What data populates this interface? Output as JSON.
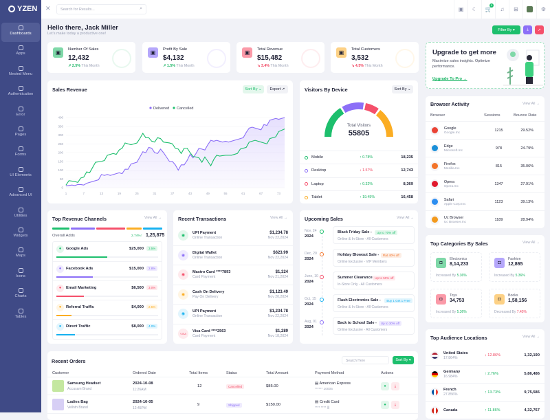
{
  "app": {
    "logo": "YZEN"
  },
  "sidebar": {
    "items": [
      {
        "label": "Dashboards",
        "icon": "home-icon"
      },
      {
        "label": "Apps",
        "icon": "grid-icon"
      },
      {
        "label": "Nested Menu",
        "icon": "layers-icon"
      },
      {
        "label": "Authentication",
        "icon": "fingerprint-icon"
      },
      {
        "label": "Error",
        "icon": "warning-icon"
      },
      {
        "label": "Pages",
        "icon": "page-icon"
      },
      {
        "label": "Forms",
        "icon": "form-icon"
      },
      {
        "label": "UI Elements",
        "icon": "box-icon"
      },
      {
        "label": "Advanced UI",
        "icon": "pen-icon"
      },
      {
        "label": "Utilities",
        "icon": "database-icon"
      },
      {
        "label": "Widgets",
        "icon": "widget-icon"
      },
      {
        "label": "Maps",
        "icon": "map-icon"
      },
      {
        "label": "Icons",
        "icon": "icons-icon"
      },
      {
        "label": "Charts",
        "icon": "chart-icon"
      },
      {
        "label": "Tables",
        "icon": "table-icon"
      }
    ]
  },
  "header": {
    "search_placeholder": "Search for Results...",
    "cart_count": "5"
  },
  "greeting": {
    "title": "Hello there, Jack Miller",
    "subtitle": "Let's make today a productive one!"
  },
  "actions": {
    "filter": "Filter By"
  },
  "stats": [
    {
      "label": "Number Of Sales",
      "value": "12,432",
      "change": "2.5%",
      "period": "This Month",
      "trend": "up",
      "color": "#7fd8a8"
    },
    {
      "label": "Profit By Sale",
      "value": "$4,132",
      "change": "1.5%",
      "period": "This Month",
      "trend": "up",
      "color": "#b5a7fb"
    },
    {
      "label": "Total Revenue",
      "value": "$15,482",
      "change": "3.4%",
      "period": "This Month",
      "trend": "down",
      "color": "#fb9aa8"
    },
    {
      "label": "Total Customers",
      "value": "3,532",
      "change": "4.5%",
      "period": "This Month",
      "trend": "down",
      "color": "#fdd185"
    }
  ],
  "sales_revenue": {
    "title": "Sales Revenue",
    "sort": "Sort By",
    "export": "Export"
  },
  "chart_data": {
    "type": "area",
    "legend_position": "top-center",
    "grid": true,
    "ylim": [
      0,
      400
    ],
    "y_ticks": [
      "0",
      "50",
      "100",
      "150",
      "200",
      "250",
      "300",
      "350",
      "400"
    ],
    "x_ticks": [
      "1",
      "7",
      "13",
      "19",
      "25",
      "31",
      "37",
      "43",
      "49",
      "55",
      "61",
      "67",
      "73"
    ],
    "series": [
      {
        "name": "Delivered",
        "color": "#8c6ff7",
        "points": [
          [
            1,
            10
          ],
          [
            3,
            15
          ],
          [
            4,
            12
          ],
          [
            5,
            18
          ],
          [
            6,
            18
          ],
          [
            7,
            15
          ],
          [
            8,
            25
          ],
          [
            10,
            35
          ],
          [
            12,
            45
          ],
          [
            13,
            75
          ],
          [
            14,
            70
          ],
          [
            15,
            75
          ],
          [
            16,
            70
          ],
          [
            18,
            80
          ],
          [
            19,
            85
          ],
          [
            20,
            80
          ],
          [
            21,
            105
          ],
          [
            22,
            105
          ],
          [
            23,
            135
          ],
          [
            25,
            145
          ],
          [
            26,
            175
          ],
          [
            27,
            205
          ],
          [
            28,
            200
          ],
          [
            29,
            230
          ],
          [
            30,
            225
          ],
          [
            31,
            200
          ],
          [
            32,
            195
          ],
          [
            33,
            220
          ],
          [
            34,
            200
          ],
          [
            35,
            175
          ],
          [
            36,
            150
          ],
          [
            37,
            150
          ],
          [
            38,
            130
          ],
          [
            39,
            100
          ],
          [
            40,
            130
          ],
          [
            41,
            130
          ],
          [
            42,
            155
          ],
          [
            43,
            190
          ],
          [
            44,
            170
          ],
          [
            45,
            195
          ],
          [
            46,
            225
          ],
          [
            47,
            220
          ],
          [
            48,
            215
          ],
          [
            49,
            245
          ],
          [
            50,
            270
          ],
          [
            51,
            265
          ],
          [
            52,
            270
          ],
          [
            53,
            265
          ],
          [
            54,
            260
          ],
          [
            55,
            265
          ],
          [
            56,
            260
          ],
          [
            58,
            270
          ],
          [
            60,
            280
          ],
          [
            61,
            285
          ],
          [
            62,
            315
          ],
          [
            63,
            340
          ],
          [
            64,
            345
          ],
          [
            66,
            335
          ],
          [
            67,
            330
          ],
          [
            68,
            360
          ],
          [
            69,
            355
          ],
          [
            70,
            385
          ],
          [
            72,
            395
          ],
          [
            73,
            390
          ],
          [
            75,
            400
          ]
        ]
      },
      {
        "name": "Cancelled",
        "color": "#1dbf6d",
        "points": [
          [
            1,
            15
          ],
          [
            2,
            40
          ],
          [
            4,
            35
          ],
          [
            5,
            30
          ],
          [
            6,
            55
          ],
          [
            7,
            60
          ],
          [
            8,
            90
          ],
          [
            9,
            85
          ],
          [
            10,
            115
          ],
          [
            11,
            145
          ],
          [
            13,
            150
          ],
          [
            14,
            155
          ],
          [
            15,
            185
          ],
          [
            17,
            195
          ],
          [
            18,
            190
          ],
          [
            19,
            215
          ],
          [
            20,
            225
          ],
          [
            21,
            255
          ],
          [
            23,
            245
          ],
          [
            25,
            255
          ],
          [
            26,
            280
          ],
          [
            27,
            310
          ],
          [
            28,
            285
          ],
          [
            29,
            285
          ],
          [
            30,
            265
          ],
          [
            31,
            260
          ],
          [
            32,
            285
          ],
          [
            33,
            280
          ],
          [
            34,
            260
          ],
          [
            36,
            255
          ],
          [
            37,
            250
          ],
          [
            38,
            225
          ],
          [
            39,
            220
          ],
          [
            40,
            195
          ],
          [
            41,
            225
          ],
          [
            42,
            225
          ],
          [
            43,
            200
          ],
          [
            44,
            178
          ],
          [
            45,
            175
          ],
          [
            46,
            170
          ],
          [
            47,
            145
          ],
          [
            48,
            175
          ],
          [
            49,
            150
          ],
          [
            50,
            125
          ],
          [
            51,
            160
          ],
          [
            52,
            185
          ],
          [
            53,
            180
          ],
          [
            55,
            185
          ],
          [
            57,
            185
          ],
          [
            58,
            190
          ],
          [
            59,
            195
          ],
          [
            60,
            220
          ],
          [
            62,
            230
          ],
          [
            63,
            260
          ],
          [
            65,
            270
          ],
          [
            67,
            260
          ],
          [
            68,
            255
          ],
          [
            69,
            250
          ],
          [
            70,
            280
          ],
          [
            72,
            290
          ],
          [
            73,
            320
          ],
          [
            75,
            335
          ]
        ]
      }
    ]
  },
  "visitors": {
    "title": "Visitors By Device",
    "sort": "Sort By",
    "center_label": "Total Visitors",
    "total": "55805",
    "rows": [
      {
        "name": "Mobile",
        "change": "0.78%",
        "trend": "up",
        "value": "18,235",
        "count": 18235,
        "color": "#1dbf6d"
      },
      {
        "name": "Desktop",
        "change": "1.57%",
        "trend": "down",
        "value": "12,743",
        "count": 12743,
        "color": "#8c6ff7"
      },
      {
        "name": "Laptop",
        "change": "0.32%",
        "trend": "up",
        "value": "8,369",
        "count": 8369,
        "color": "#f5506b"
      },
      {
        "name": "Tablet",
        "change": "19.45%",
        "trend": "up",
        "value": "16,458",
        "count": 16458,
        "color": "#fbad23"
      }
    ]
  },
  "upgrade": {
    "title": "Upgrade to get more",
    "text": "Maximize sales insights. Optimize performance.",
    "link": "Upgrade To Pro"
  },
  "browser": {
    "title": "Browser Activity",
    "view_all": "View All",
    "headers": [
      "Browser",
      "Sessions",
      "Bounce Rate"
    ],
    "rows": [
      {
        "name": "Google",
        "sub": "Google.Inc",
        "sessions": "1215",
        "bounce": "29.52%",
        "color": "#ea4335"
      },
      {
        "name": "Edge",
        "sub": "Microsoft.Inc",
        "sessions": "978",
        "bounce": "24.79%",
        "color": "#1a8fd8"
      },
      {
        "name": "Firefox",
        "sub": "Mozilla.Inc",
        "sessions": "815",
        "bounce": "35.06%",
        "color": "#f3742a"
      },
      {
        "name": "Opera",
        "sub": "Opera.Inc",
        "sessions": "1347",
        "bounce": "27.91%",
        "color": "#e0182d"
      },
      {
        "name": "Safari",
        "sub": "Apple Corp.Inc",
        "sessions": "1123",
        "bounce": "39.13%",
        "color": "#2d8ef0"
      },
      {
        "name": "Uc Browser",
        "sub": "Uc Browser.Inc",
        "sessions": "1189",
        "bounce": "28.94%",
        "color": "#f39a1d"
      }
    ]
  },
  "channels": {
    "title": "Top Revenue Channels",
    "view_all": "View All",
    "overall_label": "Overall Adds",
    "overall_change": "2.74%",
    "overall_value": "1,25,875",
    "rows": [
      {
        "name": "Google Ads",
        "value": "$25,000",
        "pct": "3.5%",
        "color": "#1dbf6d",
        "bg": "#e3f7ec",
        "fill": 0.5
      },
      {
        "name": "Facebook Ads",
        "value": "$15,000",
        "pct": "2.8%",
        "color": "#8c6ff7",
        "bg": "#efebfe",
        "fill": 0.36
      },
      {
        "name": "Email Marketing",
        "value": "$6,500",
        "pct": "3.0%",
        "color": "#f5506b",
        "bg": "#feeaed",
        "fill": 0.27
      },
      {
        "name": "Referral Traffic",
        "value": "$4,000",
        "pct": "2.5%",
        "color": "#fbad23",
        "bg": "#fff5e3",
        "fill": 0.15
      },
      {
        "name": "Direct Traffic",
        "value": "$8,000",
        "pct": "4.0%",
        "color": "#16b1f0",
        "bg": "#e2f5fd",
        "fill": 0.18
      }
    ]
  },
  "transactions": {
    "title": "Recent Transactions",
    "view_all": "View All",
    "rows": [
      {
        "name": "UPI Payment",
        "sub": "Online Transaction",
        "amount": "$1,234.78",
        "date": "Nov 22,2024",
        "color": "#1dbf6d",
        "bg": "#e3f7ec"
      },
      {
        "name": "Digital Wallet",
        "sub": "Online Transaction",
        "amount": "$623.99",
        "date": "Nov 22,2024",
        "color": "#8c6ff7",
        "bg": "#efebfe"
      },
      {
        "name": "Mastro Card ****7893",
        "sub": "Card Payment",
        "amount": "$1,324",
        "date": "Nov 21,2024",
        "color": "#f5506b",
        "bg": "#feeaed"
      },
      {
        "name": "Cash On Delivery",
        "sub": "Pay On Delivery",
        "amount": "$1,123.49",
        "date": "Nov 20,2024",
        "color": "#fbad23",
        "bg": "#fff5e3"
      },
      {
        "name": "UPI Payment",
        "sub": "Online Transaction",
        "amount": "$1,234.78",
        "date": "Nov 22,2024",
        "color": "#16b1f0",
        "bg": "#e2f5fd"
      },
      {
        "name": "Visa Card ****2563",
        "sub": "Card Payment",
        "amount": "$1,289",
        "date": "Nov 18,2024",
        "color": "#f5506b",
        "bg": "#feeaed",
        "icon_text": "VISA"
      }
    ]
  },
  "upcoming": {
    "title": "Upcoming Sales",
    "view_all": "View All",
    "rows": [
      {
        "day": "Nov, 24",
        "year": "2024",
        "name": "Black Friday Sale -",
        "tag": "Up to 70% off",
        "sub": "Online & In-Store - All Customers",
        "color": "#1dbf6d",
        "bg": "#e3f7ec"
      },
      {
        "day": "Dec, 20",
        "year": "2024",
        "name": "Holiday Blowout Sale -",
        "tag": "Flat 40% off",
        "sub": "Online Exclusive - VIP Members",
        "color": "#f3742a",
        "bg": "#fdeee5"
      },
      {
        "day": "June, 10",
        "year": "2024",
        "name": "Summer Clearance -",
        "tag": "Up to 50% off",
        "sub": "In-Store Only - All Customers",
        "color": "#f5506b",
        "bg": "#feeaed"
      },
      {
        "day": "Oct, 15",
        "year": "2024",
        "name": "Flash Electronics Sale -",
        "tag": "Buy 1 Get 1 Free",
        "sub": "Online & In-Store - All Customers",
        "color": "#16b1f0",
        "bg": "#e2f5fd"
      },
      {
        "day": "Aug, 01",
        "year": "2024",
        "name": "Back to School Sale -",
        "tag": "Up to 30% off",
        "sub": "Online Exclusive - All Customers",
        "color": "#8c6ff7",
        "bg": "#efebfe"
      }
    ]
  },
  "categories": {
    "title": "Top Categories By Sales",
    "view_all": "View All",
    "items": [
      {
        "name": "Electronics",
        "value": "8,14,233",
        "label": "Increased By",
        "change": "5.36%",
        "trend": "up",
        "color": "#7fd8a8"
      },
      {
        "name": "Fashion",
        "value": "12,865",
        "label": "Increased By",
        "change": "5.36%",
        "trend": "up",
        "color": "#b5a7fb"
      },
      {
        "name": "Toys",
        "value": "34,753",
        "label": "Increased By",
        "change": "5.36%",
        "trend": "up",
        "color": "#fb9aa8"
      },
      {
        "name": "Books",
        "value": "1,58,156",
        "label": "Decreased By",
        "change": "7.45%",
        "trend": "down",
        "color": "#fdd185"
      }
    ]
  },
  "audience": {
    "title": "Top Audience Locations",
    "view_all": "View All",
    "rows": [
      {
        "name": "United States",
        "pct": "17.864%",
        "change": "12.86%",
        "trend": "down",
        "value": "1,32,190"
      },
      {
        "name": "Germany",
        "pct": "16.984%",
        "change": "2.76%",
        "trend": "up",
        "value": "5,86,486"
      },
      {
        "name": "French",
        "pct": "27.856%",
        "change": "13.73%",
        "trend": "up",
        "value": "9,75,586"
      },
      {
        "name": "Canada",
        "pct": "",
        "change": "11.86%",
        "trend": "up",
        "value": "4,32,767"
      }
    ]
  },
  "orders": {
    "title": "Recent Orders",
    "search_placeholder": "Search Here",
    "sort": "Sort By",
    "headers": [
      "Customer",
      "Ordered Date",
      "Total Items",
      "Status",
      "Total Amount",
      "Payment Method",
      "Actions"
    ],
    "rows": [
      {
        "product": "Samsung Headset",
        "brand": "Accusam Brand",
        "date": "2024-10-08",
        "time": "11:26AM",
        "items": "12",
        "status": "Cancelled",
        "status_color": "#f5506b",
        "status_bg": "#feeaed",
        "amount": "$85.00",
        "method": "American Express",
        "card": "****** 10005"
      },
      {
        "product": "Ladies Bag",
        "brand": "Vellntn Brand",
        "date": "2024-10-05",
        "time": "12:45PM",
        "items": "9",
        "status": "Shipped",
        "status_color": "#8c6ff7",
        "status_bg": "#efebfe",
        "amount": "$150.00",
        "method": "Credit Card",
        "card": "**** **** |||"
      }
    ]
  }
}
